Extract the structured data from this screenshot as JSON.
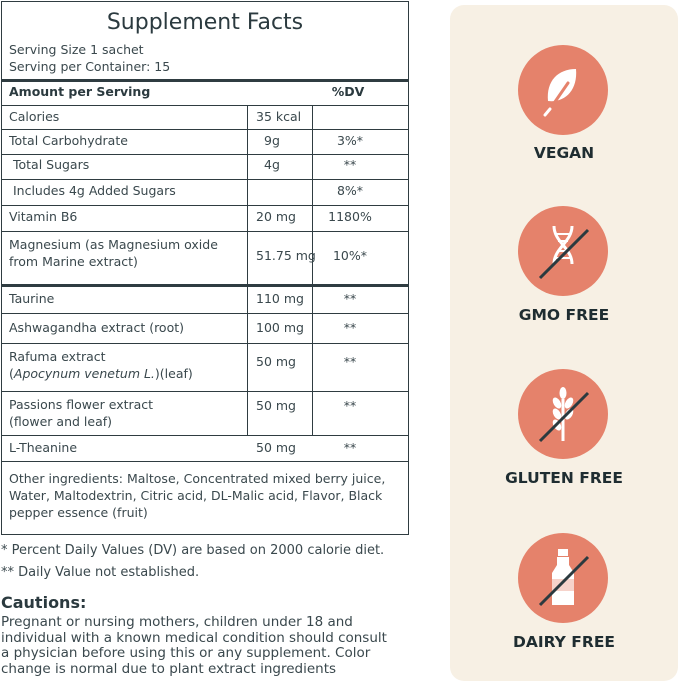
{
  "facts": {
    "title": "Supplement Facts",
    "serving_size": "Serving Size 1 sachet",
    "serving_per_container": "Serving per Container: 15",
    "header_amount": "Amount per Serving",
    "header_dv": "%DV",
    "rows": [
      {
        "name": "Calories",
        "amount": "35 kcal",
        "dv": ""
      },
      {
        "name": "Total Carbohydrate",
        "amount": "9g",
        "dv": "3%*"
      },
      {
        "name": " Total Sugars",
        "amount": "4g",
        "dv": "**"
      },
      {
        "name": " Includes 4g Added Sugars",
        "amount": "",
        "dv": "8%*"
      },
      {
        "name": "Vitamin B6",
        "amount": "20 mg",
        "dv": "1180%"
      },
      {
        "name_line1": "Magnesium (as Magnesium oxide",
        "name_line2": "from Marine extract)",
        "amount": "51.75 mg",
        "dv": "10%*"
      },
      {
        "name": "Taurine",
        "amount": "110 mg",
        "dv": "**"
      },
      {
        "name": "Ashwagandha extract (root)",
        "amount": "100 mg",
        "dv": "**"
      },
      {
        "name_line1": "Rafuma extract",
        "name_line2_italic": "Apocynum venetum L.",
        "name_line2_tail": "(leaf)",
        "amount": "50 mg",
        "dv": "**"
      },
      {
        "name_line1": "Passions flower extract",
        "name_line2": "(flower and leaf)",
        "amount": "50 mg",
        "dv": "**"
      },
      {
        "name": "L-Theanine",
        "amount": "50 mg",
        "dv": "**"
      }
    ],
    "other_ingredients": [
      "Other ingredients: Maltose, Concentrated mixed berry juice,",
      "Water, Maltodextrin, Citric acid, DL-Malic acid, Flavor, Black",
      "pepper essence (fruit)"
    ]
  },
  "footnotes": {
    "dv": "* Percent Daily Values (DV) are based on 2000 calorie diet.",
    "not_established": "** Daily Value not established."
  },
  "cautions": {
    "title": "Cautions:",
    "lines": [
      "Pregnant or nursing mothers, children under 18 and",
      "individual with a known medical condition should consult",
      "a physician before using this or any supplement. Color",
      "change is normal due to plant extract ingredients"
    ]
  },
  "badges": [
    {
      "label": "VEGAN",
      "icon": "leaf-icon"
    },
    {
      "label": "GMO FREE",
      "icon": "dna-crossed-icon"
    },
    {
      "label": "GLUTEN FREE",
      "icon": "wheat-crossed-icon"
    },
    {
      "label": "DAIRY FREE",
      "icon": "milk-bottle-crossed-icon"
    }
  ],
  "colors": {
    "badge": "#e5826b",
    "panel": "#f7f0e4",
    "text": "#2b3a3f"
  }
}
